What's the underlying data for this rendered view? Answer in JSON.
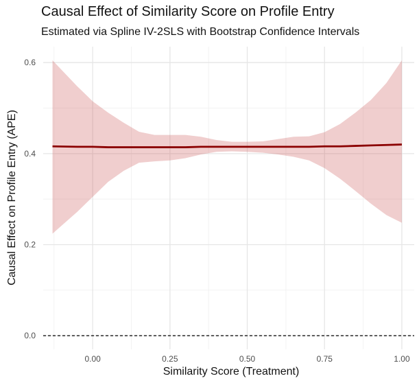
{
  "chart_data": {
    "type": "line",
    "title": "Causal Effect of Similarity Score on Profile Entry",
    "subtitle": "Estimated via Spline IV-2SLS with Bootstrap Confidence Intervals",
    "xlabel": "Similarity Score (Treatment)",
    "ylabel": "Causal Effect on Profile Entry (APE)",
    "xlim": [
      -0.16,
      1.04
    ],
    "ylim": [
      -0.03,
      0.635
    ],
    "x_ticks": [
      0.0,
      0.25,
      0.5,
      0.75,
      1.0
    ],
    "x_tick_labels": [
      "0.00",
      "0.25",
      "0.50",
      "0.75",
      "1.00"
    ],
    "y_ticks": [
      0.0,
      0.2,
      0.4,
      0.6
    ],
    "y_tick_labels": [
      "0.0",
      "0.2",
      "0.4",
      "0.6"
    ],
    "grid": true,
    "reference_line": {
      "y": 0.0,
      "style": "dashed",
      "color": "#000000"
    },
    "series": [
      {
        "x": [
          -0.13,
          -0.05,
          0.0,
          0.05,
          0.1,
          0.15,
          0.2,
          0.25,
          0.3,
          0.35,
          0.4,
          0.45,
          0.5,
          0.55,
          0.6,
          0.65,
          0.7,
          0.75,
          0.8,
          0.85,
          0.9,
          0.95,
          1.0
        ],
        "y": [
          0.416,
          0.415,
          0.415,
          0.414,
          0.414,
          0.414,
          0.414,
          0.414,
          0.414,
          0.415,
          0.415,
          0.415,
          0.415,
          0.415,
          0.415,
          0.415,
          0.415,
          0.416,
          0.416,
          0.417,
          0.418,
          0.419,
          0.42
        ],
        "lower": [
          0.224,
          0.272,
          0.305,
          0.338,
          0.362,
          0.38,
          0.383,
          0.385,
          0.39,
          0.398,
          0.404,
          0.405,
          0.404,
          0.402,
          0.398,
          0.393,
          0.385,
          0.368,
          0.345,
          0.318,
          0.29,
          0.265,
          0.248
        ],
        "upper": [
          0.605,
          0.548,
          0.515,
          0.49,
          0.468,
          0.448,
          0.441,
          0.441,
          0.441,
          0.437,
          0.43,
          0.426,
          0.426,
          0.427,
          0.432,
          0.437,
          0.438,
          0.447,
          0.465,
          0.49,
          0.518,
          0.555,
          0.605
        ],
        "line_color": "#8b0000",
        "band_color": "#cd5c5c"
      }
    ]
  }
}
